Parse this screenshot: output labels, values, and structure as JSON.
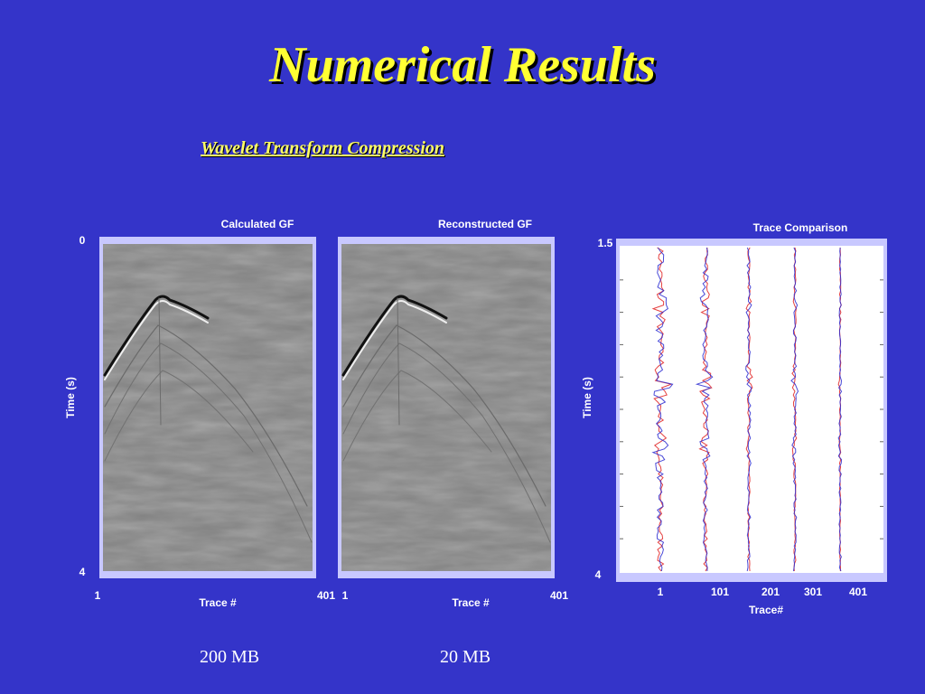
{
  "slide": {
    "title": "Numerical Results",
    "subtitle": "Wavelet Transform Compression"
  },
  "colors": {
    "background": "#3434c9",
    "title": "#ffff33",
    "panel_frame": "#c8c8ff",
    "seismic_gray": "#808080",
    "trace_red": "#e02020",
    "trace_blue": "#2a2ad0"
  },
  "chart_data": [
    {
      "type": "heatmap",
      "title": "Calculated GF",
      "xlabel": "Trace #",
      "ylabel": "Time (s)",
      "xlim": [
        1,
        401
      ],
      "ylim": [
        0,
        4
      ],
      "x_ticks": [
        "1",
        "401"
      ],
      "y_ticks": [
        "0",
        "4"
      ],
      "size_label": "200 MB"
    },
    {
      "type": "heatmap",
      "title": "Reconstructed GF",
      "xlabel": "Trace #",
      "ylabel": "",
      "xlim": [
        1,
        401
      ],
      "ylim": [
        0,
        4
      ],
      "x_ticks": [
        "1",
        "401"
      ],
      "y_ticks": [],
      "size_label": "20 MB"
    },
    {
      "type": "line",
      "title": "Trace Comparison",
      "xlabel": "Trace#",
      "ylabel": "Time (s)",
      "ylim": [
        1.5,
        4
      ],
      "x_ticks": [
        "1",
        "101",
        "201",
        "301",
        "401"
      ],
      "y_ticks": [
        "1.5",
        "4"
      ],
      "traces": [
        {
          "trace": 1,
          "amplitude": 1.0
        },
        {
          "trace": 101,
          "amplitude": 0.7
        },
        {
          "trace": 201,
          "amplitude": 0.35
        },
        {
          "trace": 301,
          "amplitude": 0.3
        },
        {
          "trace": 401,
          "amplitude": 0.15
        }
      ],
      "grid": false
    }
  ]
}
